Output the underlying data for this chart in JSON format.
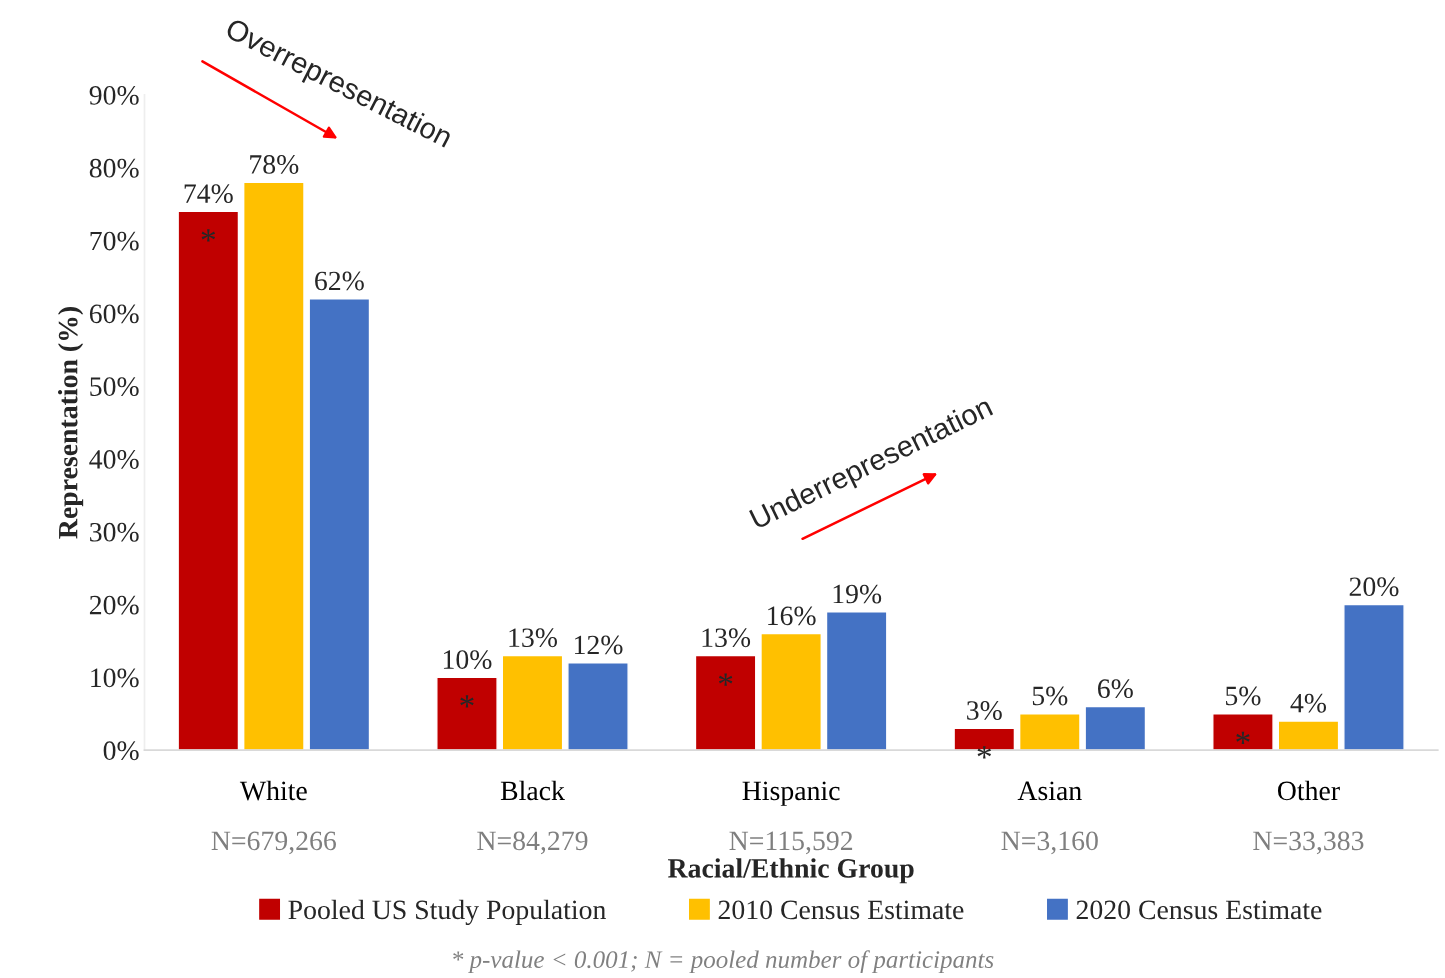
{
  "chart_data": {
    "type": "bar",
    "xlabel": "Racial/Ethnic Group",
    "ylabel": "Representation (%)",
    "categories": [
      "White\nN=679,266",
      "Black\nN=84,279",
      "Hispanic\nN=115,592",
      "Asian\nN=3,160",
      "Other\nN=33,383"
    ],
    "series": [
      {
        "name": "Pooled US Study Population",
        "color": "#c00000",
        "values": [
          74,
          10,
          13,
          3,
          5
        ]
      },
      {
        "name": "2010 Census Estimate",
        "color": "#ffc000",
        "values": [
          78,
          13,
          16,
          5,
          4
        ]
      },
      {
        "name": "2020 Census Estimate",
        "color": "#4472c4",
        "values": [
          62,
          12,
          19,
          6,
          20
        ]
      }
    ],
    "ylim": [
      0,
      90
    ],
    "yticks": [
      {
        "value": 0,
        "label": "0%"
      },
      {
        "value": 10,
        "label": "10%"
      },
      {
        "value": 20,
        "label": "20%"
      },
      {
        "value": 30,
        "label": "30%"
      },
      {
        "value": 40,
        "label": "40%"
      },
      {
        "value": 50,
        "label": "50%"
      },
      {
        "value": 60,
        "label": "60%"
      },
      {
        "value": 70,
        "label": "70%"
      },
      {
        "value": 80,
        "label": "80%"
      },
      {
        "value": 90,
        "label": "90%"
      }
    ],
    "value_labels": [
      [
        "74%",
        "10%",
        "13%",
        "3%",
        "5%"
      ],
      [
        "78%",
        "13%",
        "16%",
        "5%",
        "4%"
      ],
      [
        "62%",
        "12%",
        "19%",
        "6%",
        "20%"
      ]
    ],
    "grid": false,
    "legend": "bottom",
    "annotations": [
      "Overrepresentation",
      "Underrepresentation",
      "* p-value < 0.001; N = pooled number of participants",
      "*",
      "*",
      "*",
      "*",
      "*"
    ]
  }
}
